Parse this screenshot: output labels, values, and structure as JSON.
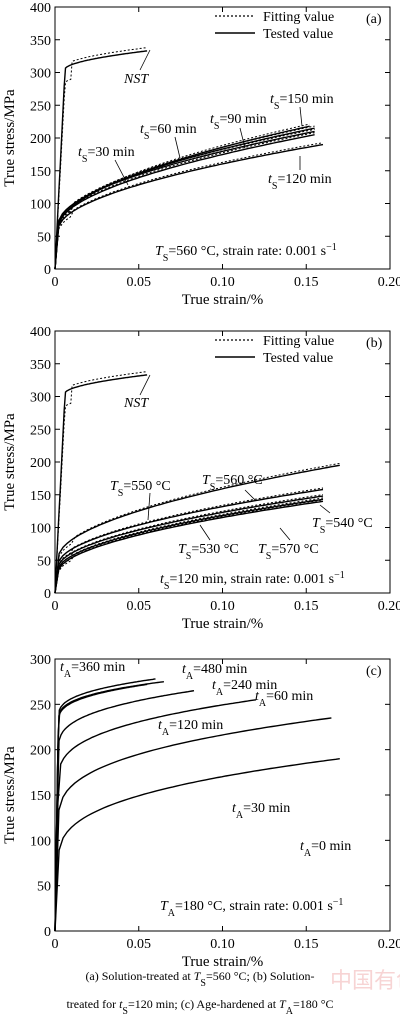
{
  "chart_data": [
    {
      "type": "line",
      "panel_label": "(a)",
      "xlabel": "True strain/%",
      "ylabel": "True stress/MPa",
      "xlim": [
        0,
        0.2
      ],
      "ylim": [
        0,
        400
      ],
      "xticks": [
        "0",
        "0.05",
        "0.10",
        "0.15",
        "0.20"
      ],
      "yticks": [
        "0",
        "50",
        "100",
        "150",
        "200",
        "250",
        "300",
        "350",
        "400"
      ],
      "legend": {
        "position": "top-right",
        "entries": [
          {
            "label": "Fitting value",
            "style": "dotted"
          },
          {
            "label": "Tested value",
            "style": "solid"
          }
        ]
      },
      "condition": {
        "main": "T",
        "sub": "S",
        "rest": "=560 °C, strain rate: 0.001 s",
        "sup": "−1"
      },
      "annotations": [
        {
          "main": "NST",
          "sub": "",
          "rest": ""
        },
        {
          "main": "t",
          "sub": "S",
          "rest": "=30 min"
        },
        {
          "main": "t",
          "sub": "S",
          "rest": "=60 min"
        },
        {
          "main": "t",
          "sub": "S",
          "rest": "=90 min"
        },
        {
          "main": "t",
          "sub": "S",
          "rest": "=150 min"
        },
        {
          "main": "t",
          "sub": "S",
          "rest": "=120 min"
        }
      ],
      "series": [
        {
          "plateau": 305,
          "end_x": 0.055,
          "end_y": 333,
          "fit": true
        },
        {
          "plateau": 70,
          "end_x": 0.155,
          "end_y": 210,
          "fit": true
        },
        {
          "plateau": 68,
          "end_x": 0.155,
          "end_y": 215,
          "fit": true
        },
        {
          "plateau": 66,
          "end_x": 0.155,
          "end_y": 205,
          "fit": true
        },
        {
          "plateau": 64,
          "end_x": 0.152,
          "end_y": 218,
          "fit": true
        },
        {
          "plateau": 62,
          "end_x": 0.16,
          "end_y": 190,
          "fit": true
        }
      ]
    },
    {
      "type": "line",
      "panel_label": "(b)",
      "xlabel": "True strain/%",
      "ylabel": "True stress/MPa",
      "xlim": [
        0,
        0.2
      ],
      "ylim": [
        0,
        400
      ],
      "xticks": [
        "0",
        "0.05",
        "0.10",
        "0.15",
        "0.20"
      ],
      "yticks": [
        "0",
        "50",
        "100",
        "150",
        "200",
        "250",
        "300",
        "350",
        "400"
      ],
      "legend": {
        "position": "top-right",
        "entries": [
          {
            "label": "Fitting value",
            "style": "dotted"
          },
          {
            "label": "Tested value",
            "style": "solid"
          }
        ]
      },
      "condition": {
        "main": "t",
        "sub": "S",
        "rest": "=120 min, strain rate: 0.001 s",
        "sup": "−1"
      },
      "annotations": [
        {
          "main": "NST",
          "sub": "",
          "rest": ""
        },
        {
          "main": "T",
          "sub": "S",
          "rest": "=560 °C"
        },
        {
          "main": "T",
          "sub": "S",
          "rest": "=550 °C"
        },
        {
          "main": "T",
          "sub": "S",
          "rest": "=540 °C"
        },
        {
          "main": "T",
          "sub": "S",
          "rest": "=530 °C"
        },
        {
          "main": "T",
          "sub": "S",
          "rest": "=570 °C"
        }
      ],
      "series": [
        {
          "plateau": 305,
          "end_x": 0.055,
          "end_y": 333,
          "fit": true
        },
        {
          "plateau": 55,
          "end_x": 0.17,
          "end_y": 195,
          "fit": true
        },
        {
          "plateau": 45,
          "end_x": 0.16,
          "end_y": 158,
          "fit": true
        },
        {
          "plateau": 40,
          "end_x": 0.16,
          "end_y": 148,
          "fit": true
        },
        {
          "plateau": 36,
          "end_x": 0.16,
          "end_y": 143,
          "fit": true
        },
        {
          "plateau": 33,
          "end_x": 0.16,
          "end_y": 140,
          "fit": true
        }
      ]
    },
    {
      "type": "line",
      "panel_label": "(c)",
      "xlabel": "True strain/%",
      "ylabel": "True stress/MPa",
      "xlim": [
        0,
        0.2
      ],
      "ylim": [
        0,
        300
      ],
      "xticks": [
        "0",
        "0.05",
        "0.10",
        "0.15",
        "0.20"
      ],
      "yticks": [
        "0",
        "50",
        "100",
        "150",
        "200",
        "250",
        "300"
      ],
      "condition": {
        "main": "T",
        "sub": "A",
        "rest": "=180 °C, strain rate: 0.001 s",
        "sup": "−1"
      },
      "annotations": [
        {
          "main": "t",
          "sub": "A",
          "rest": "=360 min"
        },
        {
          "main": "t",
          "sub": "A",
          "rest": "=480 min"
        },
        {
          "main": "t",
          "sub": "A",
          "rest": "=240 min"
        },
        {
          "main": "t",
          "sub": "A",
          "rest": "=60 min"
        },
        {
          "main": "t",
          "sub": "A",
          "rest": "=120 min"
        },
        {
          "main": "t",
          "sub": "A",
          "rest": "=30 min"
        },
        {
          "main": "t",
          "sub": "A",
          "rest": "=0 min"
        }
      ],
      "series": [
        {
          "plateau": 235,
          "end_x": 0.06,
          "end_y": 278,
          "fit": false
        },
        {
          "plateau": 232,
          "end_x": 0.065,
          "end_y": 275,
          "fit": false
        },
        {
          "plateau": 230,
          "end_x": 0.055,
          "end_y": 272,
          "fit": false
        },
        {
          "plateau": 200,
          "end_x": 0.083,
          "end_y": 265,
          "fit": false
        },
        {
          "plateau": 165,
          "end_x": 0.12,
          "end_y": 255,
          "fit": false
        },
        {
          "plateau": 120,
          "end_x": 0.165,
          "end_y": 235,
          "fit": false
        },
        {
          "plateau": 75,
          "end_x": 0.17,
          "end_y": 190,
          "fit": false
        }
      ]
    }
  ],
  "caption": {
    "line1": {
      "a": "(a)  Solution-treated  at  ",
      "b_main": "T",
      "b_sub": "S",
      "c": "=560  °C;  (b)  Solution-"
    },
    "line2": {
      "a": "treated for ",
      "b_main": "t",
      "b_sub": "S",
      "c": "=120 min; (c) Age-hardened at ",
      "d_main": "T",
      "d_sub": "A",
      "e": "=180 °C"
    }
  },
  "watermark": "中国有色网"
}
